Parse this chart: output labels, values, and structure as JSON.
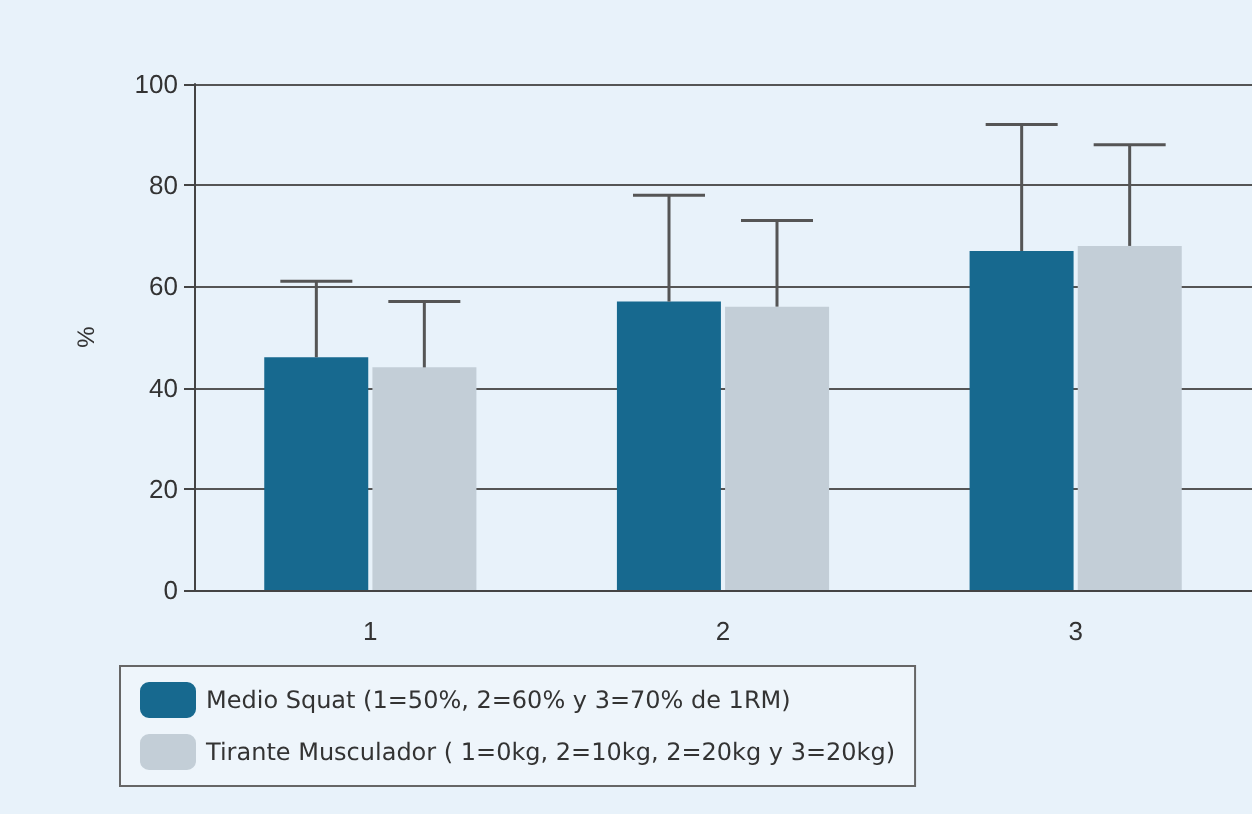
{
  "chart_data": {
    "type": "bar",
    "ylabel": "%",
    "categories": [
      "1",
      "2",
      "3"
    ],
    "series": [
      {
        "name": "Medio Squat (1=50%, 2=60% y 3=70% de 1RM)",
        "color": "#17698f",
        "values": [
          46,
          57,
          67
        ],
        "errors": [
          [
            46,
            61
          ],
          [
            57,
            78
          ],
          [
            67,
            92
          ]
        ]
      },
      {
        "name": "Tirante Musculador ( 1=0kg, 2=10kg, 2=20kg y 3=20kg)",
        "color": "#c3ced7",
        "values": [
          44,
          56,
          68
        ],
        "errors": [
          [
            44,
            57
          ],
          [
            56,
            73
          ],
          [
            68,
            88
          ]
        ]
      }
    ],
    "ylim": [
      0,
      100
    ],
    "yticks": [
      0,
      20,
      40,
      60,
      80,
      100
    ],
    "grid": "y",
    "legend": "bottom"
  }
}
